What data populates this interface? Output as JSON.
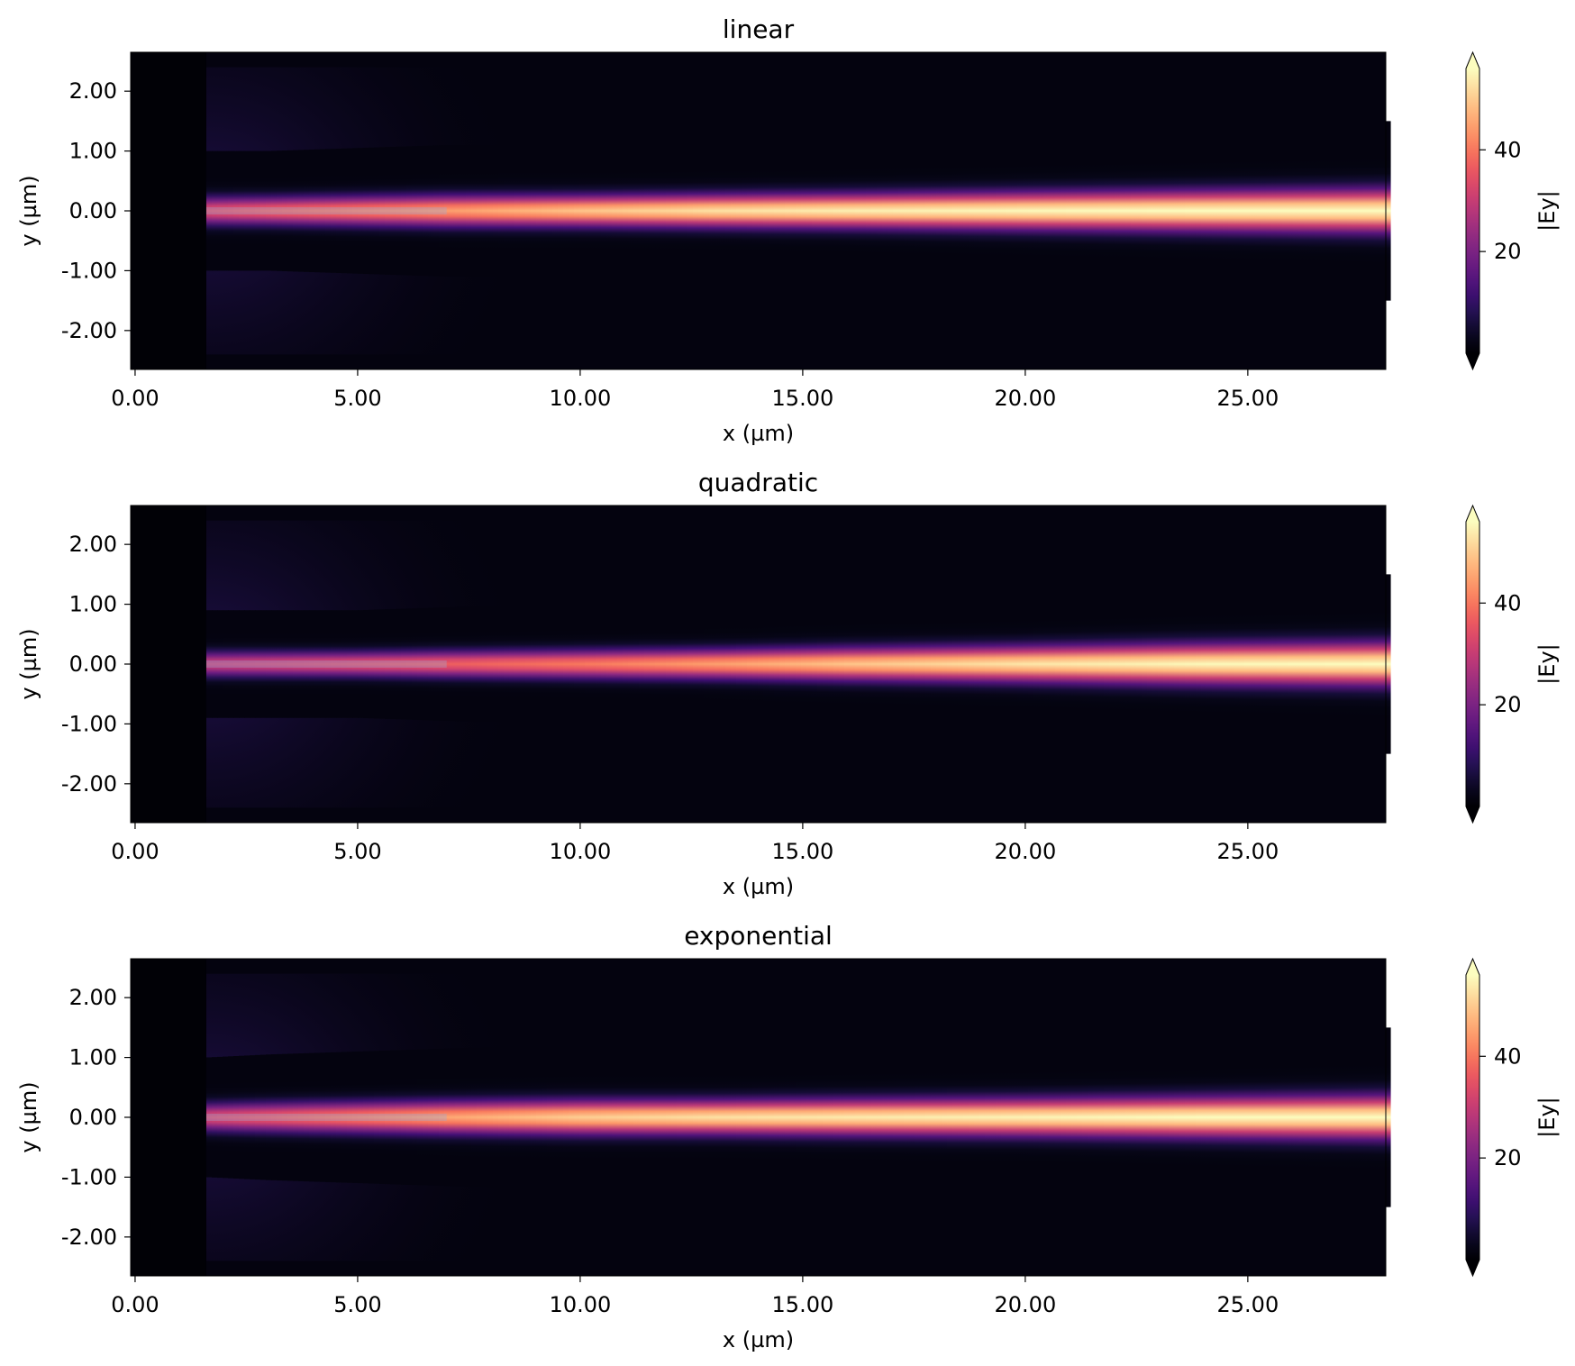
{
  "colormap": {
    "name": "magma",
    "stops": [
      "#000004",
      "#0b0924",
      "#231151",
      "#410f75",
      "#5f187f",
      "#7b2382",
      "#982d80",
      "#b73779",
      "#d3436e",
      "#eb5760",
      "#f8765c",
      "#fd9969",
      "#feba80",
      "#fddc9e",
      "#fcfdbf"
    ]
  },
  "chart_data": [
    {
      "type": "heatmap",
      "title": "linear",
      "xlabel": "x (µm)",
      "ylabel": "y (µm)",
      "xlim": [
        -0.1,
        28.1
      ],
      "ylim": [
        -2.65,
        2.65
      ],
      "xticks": [
        0,
        5,
        10,
        15,
        20,
        25
      ],
      "xtick_labels": [
        "0.00",
        "5.00",
        "10.00",
        "15.00",
        "20.00",
        "25.00"
      ],
      "yticks": [
        2,
        1,
        0,
        -1,
        -2
      ],
      "ytick_labels": [
        "2.00",
        "1.00",
        "0.00",
        "-1.00",
        "-2.00"
      ],
      "colorbar": {
        "label": "|Ey|",
        "range": [
          0,
          56
        ],
        "ticks": [
          20,
          40
        ],
        "tick_labels": [
          "20",
          "40"
        ],
        "extend": "both"
      },
      "profile": {
        "x": [
          1.6,
          3,
          5,
          7,
          10,
          13,
          16,
          20,
          24,
          28
        ],
        "peak_intensity": [
          0.62,
          0.68,
          0.74,
          0.8,
          0.88,
          0.94,
          0.97,
          0.99,
          1.0,
          1.0
        ],
        "half_width_um": [
          0.2,
          0.2,
          0.21,
          0.22,
          0.22,
          0.23,
          0.24,
          0.26,
          0.28,
          0.3
        ]
      }
    },
    {
      "type": "heatmap",
      "title": "quadratic",
      "xlabel": "x (µm)",
      "ylabel": "y (µm)",
      "xlim": [
        -0.1,
        28.1
      ],
      "ylim": [
        -2.65,
        2.65
      ],
      "xticks": [
        0,
        5,
        10,
        15,
        20,
        25
      ],
      "xtick_labels": [
        "0.00",
        "5.00",
        "10.00",
        "15.00",
        "20.00",
        "25.00"
      ],
      "yticks": [
        2,
        1,
        0,
        -1,
        -2
      ],
      "ytick_labels": [
        "2.00",
        "1.00",
        "0.00",
        "-1.00",
        "-2.00"
      ],
      "colorbar": {
        "label": "|Ey|",
        "range": [
          0,
          56
        ],
        "ticks": [
          20,
          40
        ],
        "tick_labels": [
          "20",
          "40"
        ],
        "extend": "both"
      },
      "profile": {
        "x": [
          1.6,
          3,
          5,
          7,
          10,
          13,
          16,
          20,
          24,
          28
        ],
        "peak_intensity": [
          0.55,
          0.58,
          0.62,
          0.66,
          0.72,
          0.8,
          0.88,
          0.95,
          0.99,
          1.0
        ],
        "half_width_um": [
          0.18,
          0.18,
          0.18,
          0.19,
          0.2,
          0.21,
          0.23,
          0.25,
          0.28,
          0.3
        ]
      }
    },
    {
      "type": "heatmap",
      "title": "exponential",
      "xlabel": "x (µm)",
      "ylabel": "y (µm)",
      "xlim": [
        -0.1,
        28.1
      ],
      "ylim": [
        -2.65,
        2.65
      ],
      "xticks": [
        0,
        5,
        10,
        15,
        20,
        25
      ],
      "xtick_labels": [
        "0.00",
        "5.00",
        "10.00",
        "15.00",
        "20.00",
        "25.00"
      ],
      "yticks": [
        2,
        1,
        0,
        -1,
        -2
      ],
      "ytick_labels": [
        "2.00",
        "1.00",
        "0.00",
        "-1.00",
        "-2.00"
      ],
      "colorbar": {
        "label": "|Ey|",
        "range": [
          0,
          56
        ],
        "ticks": [
          20,
          40
        ],
        "tick_labels": [
          "20",
          "40"
        ],
        "extend": "both"
      },
      "profile": {
        "x": [
          1.6,
          3,
          5,
          7,
          10,
          13,
          16,
          20,
          24,
          28
        ],
        "peak_intensity": [
          0.6,
          0.66,
          0.74,
          0.82,
          0.9,
          0.94,
          0.96,
          0.98,
          1.0,
          1.0
        ],
        "half_width_um": [
          0.2,
          0.21,
          0.22,
          0.23,
          0.24,
          0.24,
          0.25,
          0.26,
          0.28,
          0.3
        ]
      }
    }
  ]
}
